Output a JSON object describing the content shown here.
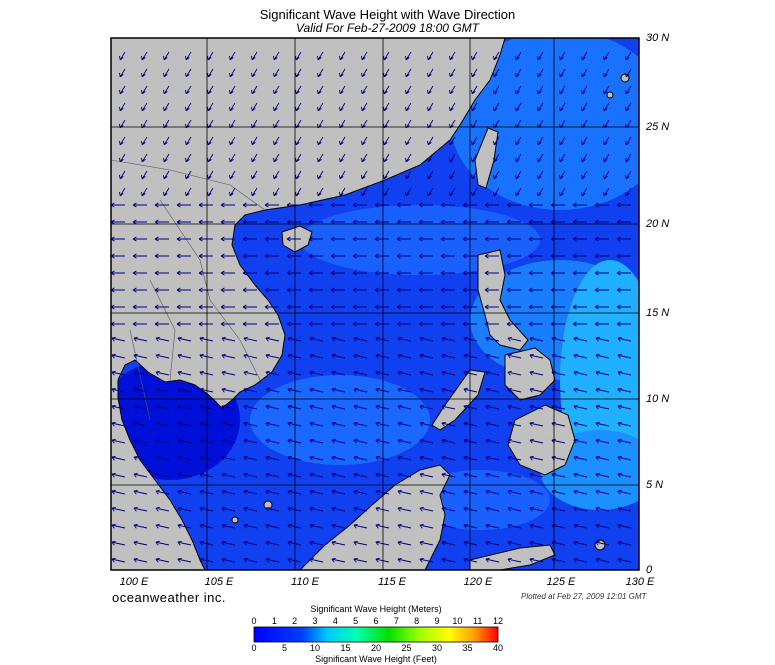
{
  "title": "Significant Wave Height with Wave Direction",
  "subtitle": "Valid For Feb-27-2009 18:00 GMT",
  "lat_labels": [
    "30 N",
    "25 N",
    "20 N",
    "15 N",
    "10 N",
    "5 N",
    "0"
  ],
  "lon_labels": [
    "100 E",
    "105 E",
    "110 E",
    "115 E",
    "120 E",
    "125 E",
    "130 E"
  ],
  "brand": "oceanweather inc.",
  "plotted": "Plotted at Feb 27, 2009 12:01 GMT",
  "colorbar": {
    "meters_title": "Significant Wave Height (Meters)",
    "feet_title": "Significant Wave Height (Feet)",
    "meters_ticks": [
      "0",
      "1",
      "2",
      "3",
      "4",
      "5",
      "6",
      "7",
      "8",
      "9",
      "10",
      "11",
      "12"
    ],
    "feet_ticks": [
      "0",
      "5",
      "10",
      "15",
      "20",
      "25",
      "30",
      "35",
      "40"
    ]
  },
  "colors": {
    "land": "#c0c0c0",
    "wave_low": "#0000ff",
    "wave_mid": "#00c8ff",
    "arrow": "#000080"
  }
}
